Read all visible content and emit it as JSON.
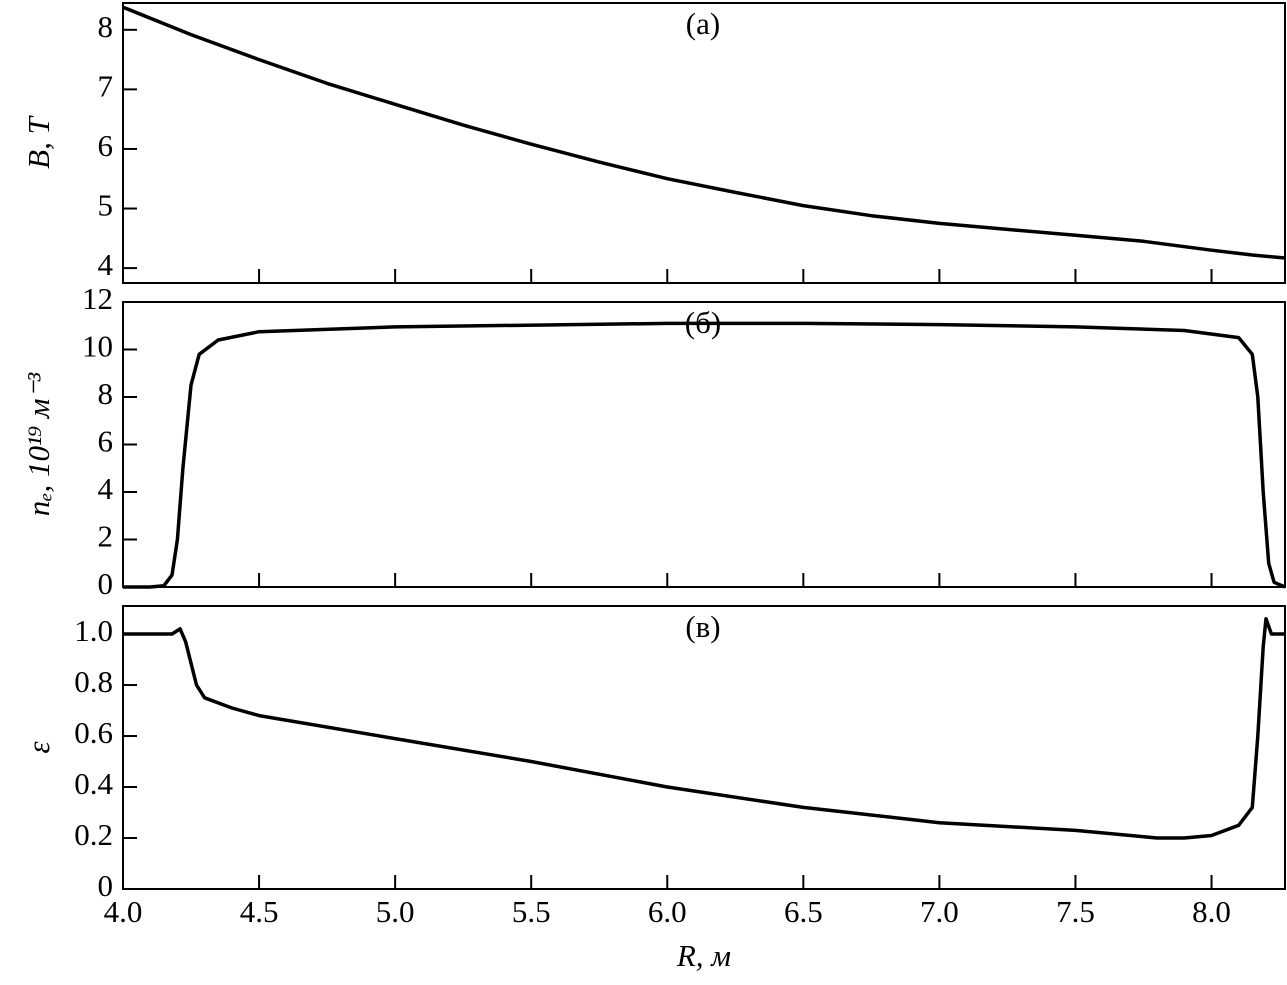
{
  "chart_data": [
    {
      "type": "line",
      "panel_label": "(а)",
      "ylabel": "B, Т",
      "x": [
        4.0,
        4.25,
        4.5,
        4.75,
        5.0,
        5.25,
        5.5,
        5.75,
        6.0,
        6.25,
        6.5,
        6.75,
        7.0,
        7.25,
        7.5,
        7.75,
        8.0,
        8.15,
        8.27
      ],
      "series": [
        {
          "color": "#000000",
          "values": [
            8.38,
            7.92,
            7.5,
            7.1,
            6.75,
            6.4,
            6.08,
            5.78,
            5.5,
            5.27,
            5.05,
            4.88,
            4.75,
            4.65,
            4.55,
            4.45,
            4.3,
            4.22,
            4.17
          ]
        }
      ],
      "xlim": [
        4.0,
        8.27
      ],
      "ylim": [
        3.75,
        8.45
      ],
      "yticks": [
        4,
        5,
        6,
        7,
        8
      ]
    },
    {
      "type": "line",
      "panel_label": "(б)",
      "ylabel": "nₑ, 10¹⁹ м⁻³",
      "x": [
        4.0,
        4.1,
        4.15,
        4.18,
        4.2,
        4.22,
        4.25,
        4.28,
        4.35,
        4.5,
        5.0,
        6.0,
        6.5,
        7.0,
        7.5,
        7.9,
        8.1,
        8.15,
        8.17,
        8.19,
        8.21,
        8.23,
        8.27
      ],
      "series": [
        {
          "color": "#000000",
          "values": [
            0,
            0,
            0.05,
            0.5,
            2,
            5,
            8.5,
            9.8,
            10.4,
            10.75,
            10.95,
            11.1,
            11.1,
            11.05,
            10.95,
            10.8,
            10.5,
            9.8,
            8,
            4,
            1,
            0.2,
            0
          ]
        }
      ],
      "xlim": [
        4.0,
        8.27
      ],
      "ylim": [
        0,
        12
      ],
      "yticks": [
        0,
        2,
        4,
        6,
        8,
        10,
        12
      ]
    },
    {
      "type": "line",
      "panel_label": "(в)",
      "ylabel": "ε",
      "xlabel": "R, м",
      "x": [
        4.0,
        4.18,
        4.21,
        4.23,
        4.27,
        4.3,
        4.4,
        4.5,
        5.0,
        5.5,
        6.0,
        6.5,
        7.0,
        7.5,
        7.8,
        7.9,
        8.0,
        8.1,
        8.15,
        8.17,
        8.19,
        8.2,
        8.22,
        8.27
      ],
      "series": [
        {
          "color": "#000000",
          "values": [
            1.0,
            1.0,
            1.02,
            0.97,
            0.8,
            0.75,
            0.71,
            0.68,
            0.59,
            0.5,
            0.4,
            0.32,
            0.26,
            0.23,
            0.2,
            0.2,
            0.21,
            0.25,
            0.32,
            0.6,
            0.95,
            1.06,
            1.0,
            1.0
          ]
        }
      ],
      "xlim": [
        4.0,
        8.27
      ],
      "ylim": [
        0,
        1.11
      ],
      "yticks": [
        0,
        0.2,
        0.4,
        0.6,
        0.8,
        {
          "value": 1,
          "label": "1.0"
        }
      ],
      "xticks": [
        {
          "value": 4,
          "label": "4.0"
        },
        4.5,
        {
          "value": 5,
          "label": "5.0"
        },
        5.5,
        {
          "value": 6,
          "label": "6.0"
        },
        6.5,
        {
          "value": 7,
          "label": "7.0"
        },
        7.5,
        {
          "value": 8,
          "label": "8.0"
        }
      ]
    }
  ]
}
